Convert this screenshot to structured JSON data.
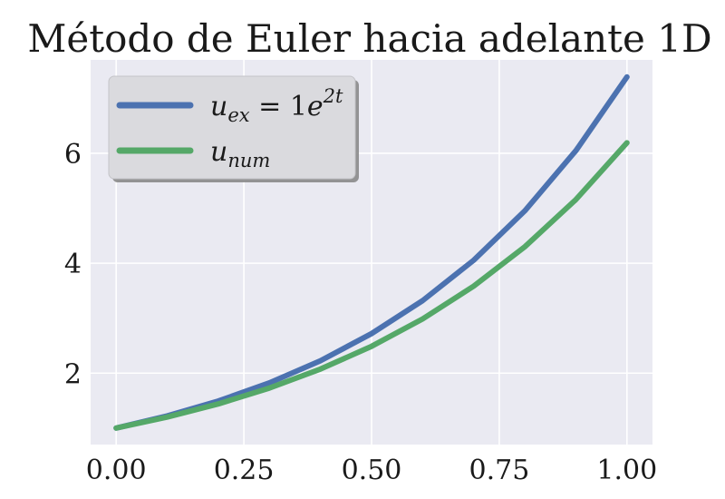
{
  "chart_data": {
    "type": "line",
    "title": "Método de Euler hacia adelante 1D",
    "xlabel": "",
    "ylabel": "",
    "xlim": [
      -0.05,
      1.05
    ],
    "ylim": [
      0.7,
      7.7
    ],
    "xticks": [
      {
        "value": 0.0,
        "label": "0.00"
      },
      {
        "value": 0.25,
        "label": "0.25"
      },
      {
        "value": 0.5,
        "label": "0.50"
      },
      {
        "value": 0.75,
        "label": "0.75"
      },
      {
        "value": 1.0,
        "label": "1.00"
      }
    ],
    "yticks": [
      {
        "value": 2,
        "label": "2"
      },
      {
        "value": 4,
        "label": "4"
      },
      {
        "value": 6,
        "label": "6"
      }
    ],
    "grid": true,
    "legend_position": "top-left",
    "x": [
      0.0,
      0.1,
      0.2,
      0.3,
      0.4,
      0.5,
      0.6,
      0.7,
      0.8,
      0.9,
      1.0
    ],
    "series": [
      {
        "name": "u_ex = 1e^{2t}",
        "legend": {
          "base": "u",
          "sub": "ex",
          "mid": " = 1e",
          "sup": "2t"
        },
        "color": "#4c72b0",
        "values": [
          1.0,
          1.2214,
          1.4918,
          1.8221,
          2.2255,
          2.7183,
          3.3201,
          4.0552,
          4.953,
          6.0496,
          7.3891
        ]
      },
      {
        "name": "u_num",
        "legend": {
          "base": "u",
          "sub": "num",
          "mid": "",
          "sup": ""
        },
        "color": "#55a868",
        "values": [
          1.0,
          1.2,
          1.44,
          1.728,
          2.0736,
          2.4883,
          2.986,
          3.5832,
          4.2998,
          5.1598,
          6.1917
        ]
      }
    ]
  }
}
